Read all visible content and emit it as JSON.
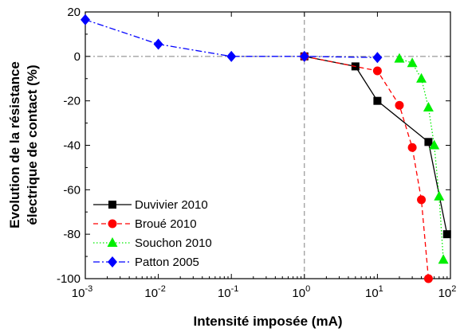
{
  "chart_data": {
    "type": "line",
    "xlabel": "Intensité imposée (mA)",
    "ylabel_line1": "Evolution de la résistance",
    "ylabel_line2": "électrique de contact (%)",
    "x_scale": "log",
    "xlim": [
      0.001,
      100
    ],
    "ylim": [
      -100,
      20
    ],
    "x_ticks": [
      {
        "value": 0.001,
        "base": "10",
        "exp": "-3"
      },
      {
        "value": 0.01,
        "base": "10",
        "exp": "-2"
      },
      {
        "value": 0.1,
        "base": "10",
        "exp": "-1"
      },
      {
        "value": 1,
        "base": "10",
        "exp": "0"
      },
      {
        "value": 10,
        "base": "10",
        "exp": "1"
      },
      {
        "value": 100,
        "base": "10",
        "exp": "2"
      }
    ],
    "y_ticks": [
      {
        "value": 20,
        "label": "20"
      },
      {
        "value": 0,
        "label": "0"
      },
      {
        "value": -20,
        "label": "-20"
      },
      {
        "value": -40,
        "label": "-40"
      },
      {
        "value": -60,
        "label": "-60"
      },
      {
        "value": -80,
        "label": "-80"
      },
      {
        "value": -100,
        "label": "-100"
      }
    ],
    "reference_lines": {
      "y": 0,
      "x": 1
    },
    "legend_position": "bottom-left",
    "series": [
      {
        "name": "Duvivier 2010",
        "color": "#000000",
        "marker": "square",
        "dash": "solid",
        "x": [
          1,
          5,
          10,
          50,
          90
        ],
        "y": [
          0,
          -4.5,
          -20,
          -38.5,
          -80
        ]
      },
      {
        "name": "Broué 2010",
        "color": "#ff0000",
        "marker": "circle",
        "dash": "dashed",
        "x": [
          1,
          10,
          20,
          30,
          40,
          50
        ],
        "y": [
          0,
          -6.5,
          -22,
          -41,
          -64.5,
          -100
        ]
      },
      {
        "name": "Souchon 2010",
        "color": "#00ee00",
        "marker": "triangle",
        "dash": "dotted",
        "x": [
          20,
          30,
          40,
          50,
          60,
          70,
          80
        ],
        "y": [
          -1,
          -3,
          -10,
          -23,
          -40,
          -63,
          -91.5
        ]
      },
      {
        "name": "Patton 2005",
        "color": "#0000ff",
        "marker": "diamond",
        "dash": "dashdot",
        "x": [
          0.001,
          0.01,
          0.1,
          1,
          10
        ],
        "y": [
          16.5,
          5.5,
          0,
          0,
          -0.5
        ]
      }
    ]
  }
}
